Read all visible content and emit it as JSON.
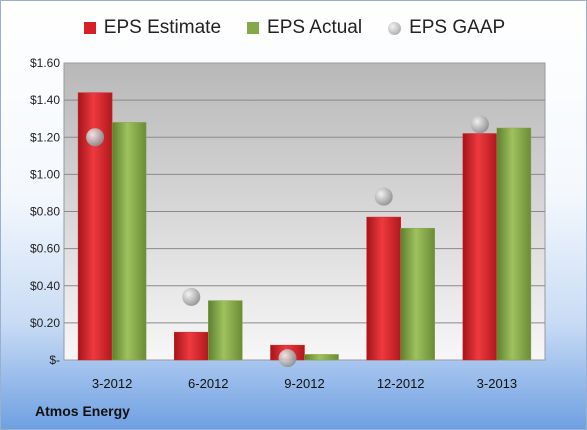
{
  "company": "Atmos Energy",
  "colors": {
    "estimate": "#d42027",
    "actual": "#84a84a",
    "gaap": "#b4b4b4"
  },
  "chart_data": {
    "type": "bar",
    "categories": [
      "3-2012",
      "6-2012",
      "9-2012",
      "12-2012",
      "3-2013"
    ],
    "series": [
      {
        "name": "EPS Estimate",
        "type": "bar",
        "values": [
          1.44,
          0.15,
          0.08,
          0.77,
          1.22
        ]
      },
      {
        "name": "EPS Actual",
        "type": "bar",
        "values": [
          1.28,
          0.32,
          0.03,
          0.71,
          1.25
        ]
      },
      {
        "name": "EPS GAAP",
        "type": "scatter",
        "values": [
          1.2,
          0.34,
          0.01,
          0.88,
          1.27
        ]
      }
    ],
    "ylim": [
      0,
      1.6
    ],
    "yticks": [
      0,
      0.2,
      0.4,
      0.6,
      0.8,
      1.0,
      1.2,
      1.4,
      1.6
    ],
    "ytick_labels": [
      "$-",
      "$0.20",
      "$0.40",
      "$0.60",
      "$0.80",
      "$1.00",
      "$1.20",
      "$1.40",
      "$1.60"
    ],
    "grid": true,
    "legend_position": "top"
  }
}
